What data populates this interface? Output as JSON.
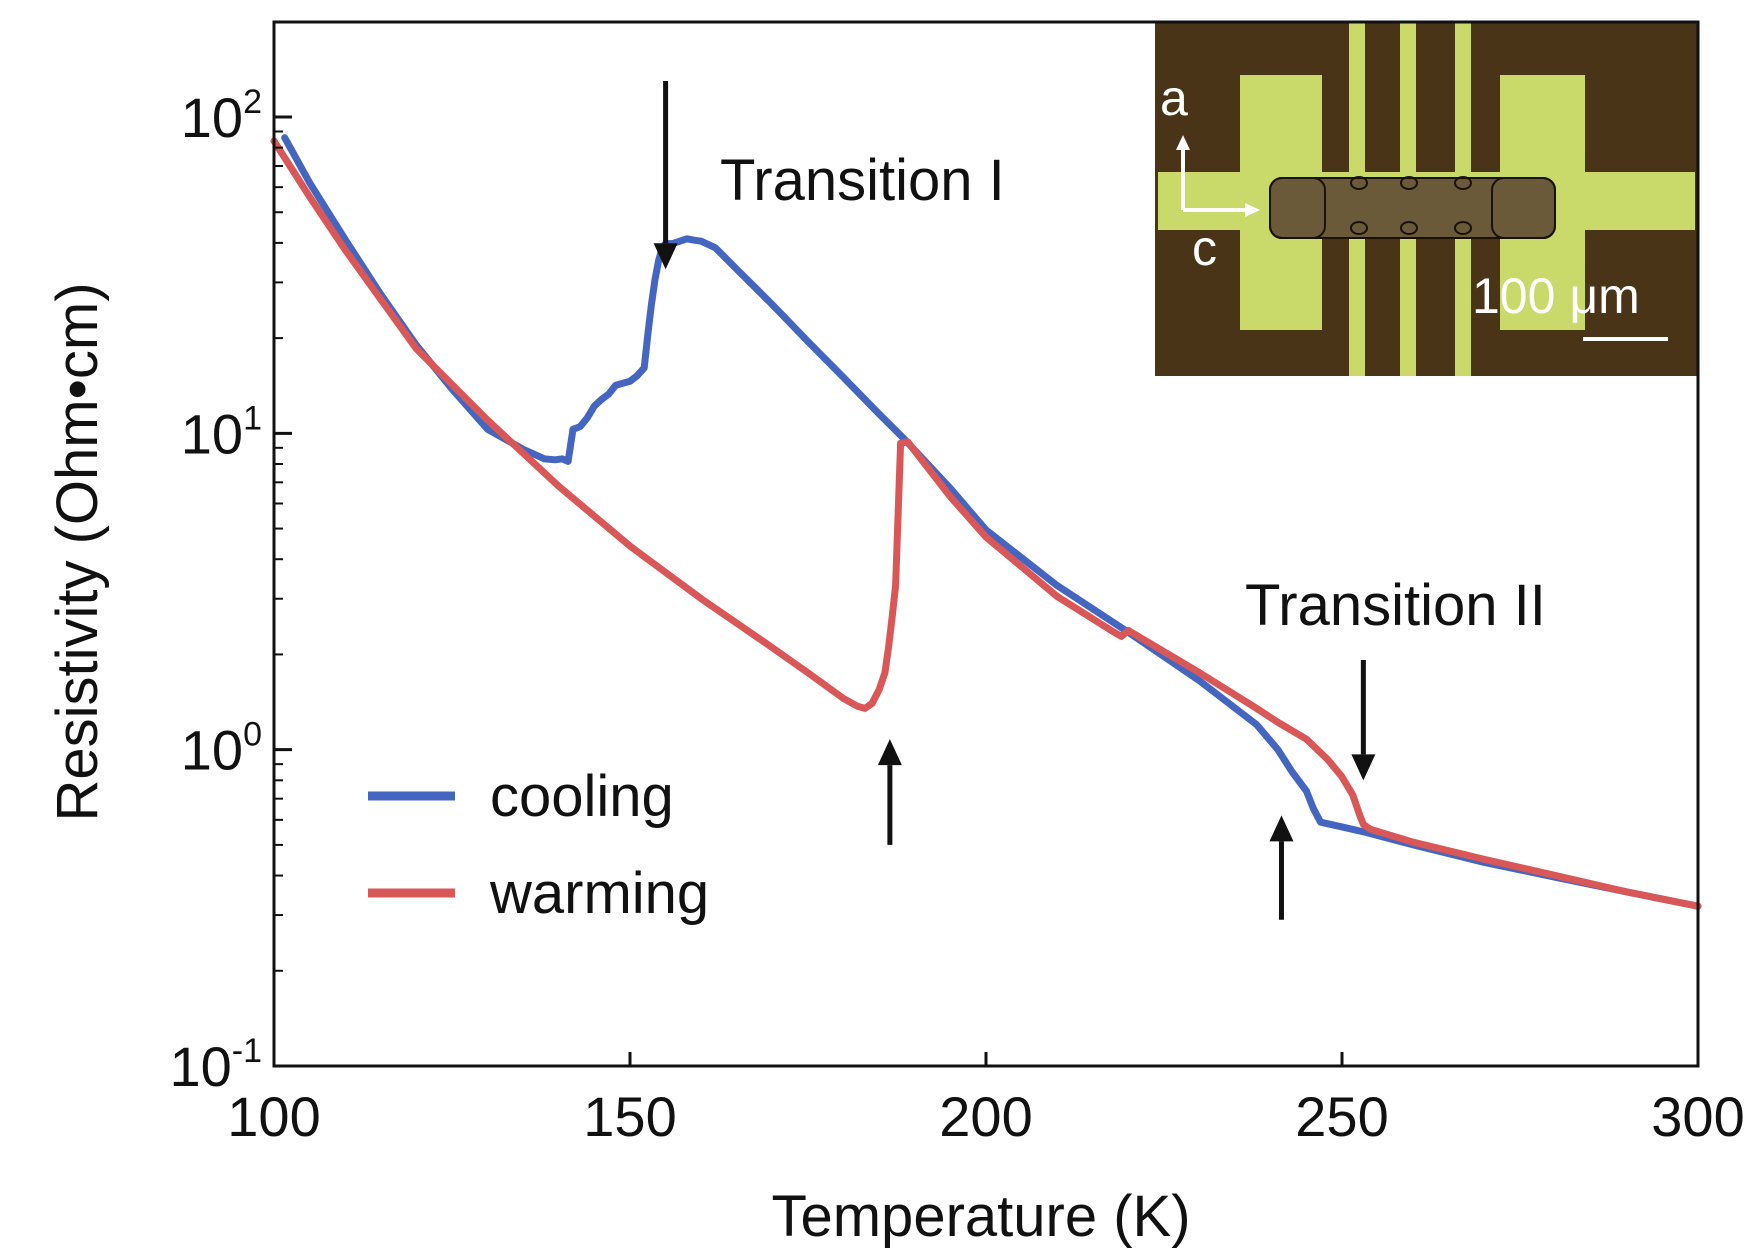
{
  "chart_data": {
    "type": "line",
    "xlabel": "Temperature (K)",
    "ylabel": "Resistivity (Ohm•cm)",
    "xlim": [
      100,
      300
    ],
    "ylim": [
      0.1,
      200
    ],
    "yscale": "log",
    "grid": false,
    "legend_position": "bottom-left",
    "x_ticks": [
      {
        "value": 100,
        "label": "100"
      },
      {
        "value": 150,
        "label": "150"
      },
      {
        "value": 200,
        "label": "200"
      },
      {
        "value": 250,
        "label": "250"
      },
      {
        "value": 300,
        "label": "300"
      }
    ],
    "y_ticks": [
      {
        "value": 0.1,
        "base": "10",
        "exp": "-1"
      },
      {
        "value": 1,
        "base": "10",
        "exp": "0"
      },
      {
        "value": 10,
        "base": "10",
        "exp": "1"
      },
      {
        "value": 100,
        "base": "10",
        "exp": "2"
      }
    ],
    "series": [
      {
        "name": "cooling",
        "color": "#4466c0",
        "x": [
          101.5,
          105,
          110,
          115,
          120,
          125,
          130,
          135,
          138,
          139.5,
          140.5,
          141.3,
          142,
          143,
          144,
          145,
          146,
          147,
          148,
          150,
          151,
          152,
          152.5,
          153,
          153.5,
          154,
          154.5,
          155,
          156,
          157,
          158,
          159,
          160,
          162,
          165,
          170,
          175,
          180,
          185,
          188.5,
          195,
          200,
          210,
          220,
          230,
          238,
          241,
          243,
          245,
          246,
          247,
          250,
          253,
          260,
          270,
          280,
          290,
          300
        ],
        "y": [
          86,
          62,
          41,
          27.5,
          19,
          13.8,
          10.3,
          8.9,
          8.3,
          8.25,
          8.3,
          8.15,
          10.3,
          10.5,
          11.2,
          12.2,
          12.8,
          13.3,
          14.2,
          14.6,
          15.2,
          16.1,
          20.5,
          25.5,
          30.5,
          35,
          38.5,
          39.8,
          39.8,
          40.5,
          41.2,
          40.8,
          40.5,
          38.6,
          33,
          25.5,
          19.5,
          15,
          11.5,
          9.6,
          6.7,
          4.95,
          3.3,
          2.35,
          1.65,
          1.2,
          1.0,
          0.85,
          0.74,
          0.65,
          0.59,
          0.57,
          0.55,
          0.5,
          0.44,
          0.395,
          0.355,
          0.32
        ]
      },
      {
        "name": "warming",
        "color": "#d95757",
        "x": [
          100,
          105,
          110,
          115,
          120,
          130,
          140,
          150,
          160,
          170,
          175,
          180,
          182,
          183,
          184,
          185,
          185.8,
          186.3,
          186.8,
          187.3,
          188,
          189,
          195,
          200,
          210,
          218,
          219,
          220,
          230,
          238,
          241,
          245,
          248,
          250,
          251.5,
          252.5,
          253,
          254,
          260,
          270,
          280,
          290,
          300
        ],
        "y": [
          84,
          56,
          38,
          26.5,
          18.5,
          11,
          6.8,
          4.4,
          3.0,
          2.1,
          1.75,
          1.45,
          1.37,
          1.35,
          1.4,
          1.55,
          1.75,
          2.1,
          2.6,
          3.3,
          9.3,
          9.4,
          6.3,
          4.7,
          3.05,
          2.35,
          2.28,
          2.38,
          1.75,
          1.35,
          1.22,
          1.08,
          0.93,
          0.82,
          0.72,
          0.62,
          0.58,
          0.56,
          0.51,
          0.45,
          0.4,
          0.355,
          0.32
        ]
      }
    ],
    "annotations": [
      {
        "text": "Transition I",
        "id": "transition-1"
      },
      {
        "text": "Transition II",
        "id": "transition-2"
      }
    ],
    "arrows": [
      {
        "x": 155,
        "y_tip": 33,
        "y_tail": 130,
        "direction": "down"
      },
      {
        "x": 186.5,
        "y_tip": 1.08,
        "y_tail": 0.5,
        "direction": "up"
      },
      {
        "x": 253,
        "y_tip": 0.8,
        "y_tail": 1.92,
        "direction": "down"
      },
      {
        "x": 241.5,
        "y_tip": 0.62,
        "y_tail": 0.29,
        "direction": "up"
      }
    ]
  },
  "inset": {
    "axis_a": "a",
    "axis_c": "c",
    "scale_label": "100 μm"
  }
}
